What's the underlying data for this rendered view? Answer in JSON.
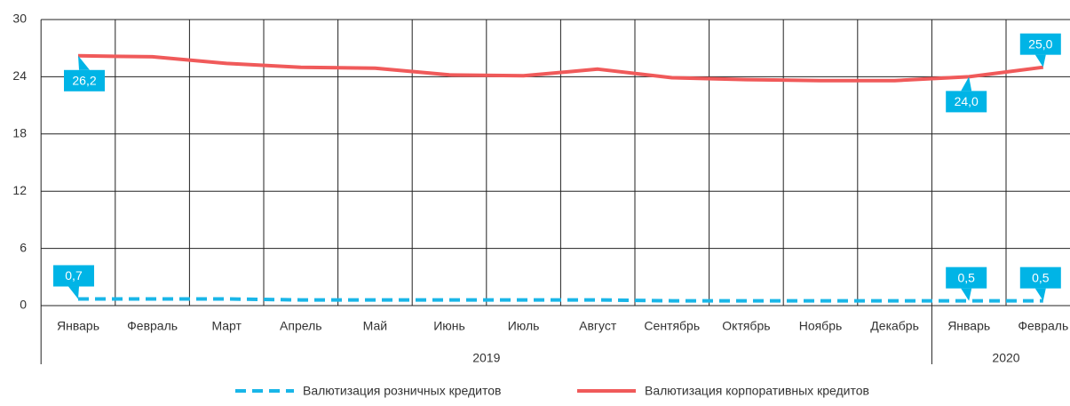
{
  "chart_data": {
    "type": "line",
    "categories": [
      "Январь",
      "Февраль",
      "Март",
      "Апрель",
      "Май",
      "Июнь",
      "Июль",
      "Август",
      "Сентябрь",
      "Октябрь",
      "Ноябрь",
      "Декабрь",
      "Январь",
      "Февраль"
    ],
    "category_groups": [
      {
        "label": "2019",
        "count": 12
      },
      {
        "label": "2020",
        "count": 2
      }
    ],
    "series": [
      {
        "name": "Валютизация розничных кредитов",
        "color": "#19b6e8",
        "dashed": true,
        "values": [
          0.7,
          0.7,
          0.7,
          0.6,
          0.6,
          0.6,
          0.6,
          0.6,
          0.5,
          0.5,
          0.5,
          0.5,
          0.5,
          0.5
        ],
        "value_labels": [
          "0,7",
          null,
          null,
          null,
          null,
          null,
          null,
          null,
          null,
          null,
          null,
          null,
          "0,5",
          "0,5"
        ]
      },
      {
        "name": "Валютизация корпоративных кредитов",
        "color": "#f05a5a",
        "dashed": false,
        "values": [
          26.2,
          26.1,
          25.4,
          25.0,
          24.9,
          24.2,
          24.1,
          24.8,
          23.9,
          23.7,
          23.6,
          23.6,
          24.0,
          25.0
        ],
        "value_labels": [
          "26,2",
          null,
          null,
          null,
          null,
          null,
          null,
          null,
          null,
          null,
          null,
          null,
          "24,0",
          "25,0"
        ]
      }
    ],
    "ylim": [
      0,
      30
    ],
    "yticks": [
      0,
      6,
      12,
      18,
      24,
      30
    ],
    "grid": true,
    "label_color": "#00b4e6",
    "legend": "bottom"
  }
}
